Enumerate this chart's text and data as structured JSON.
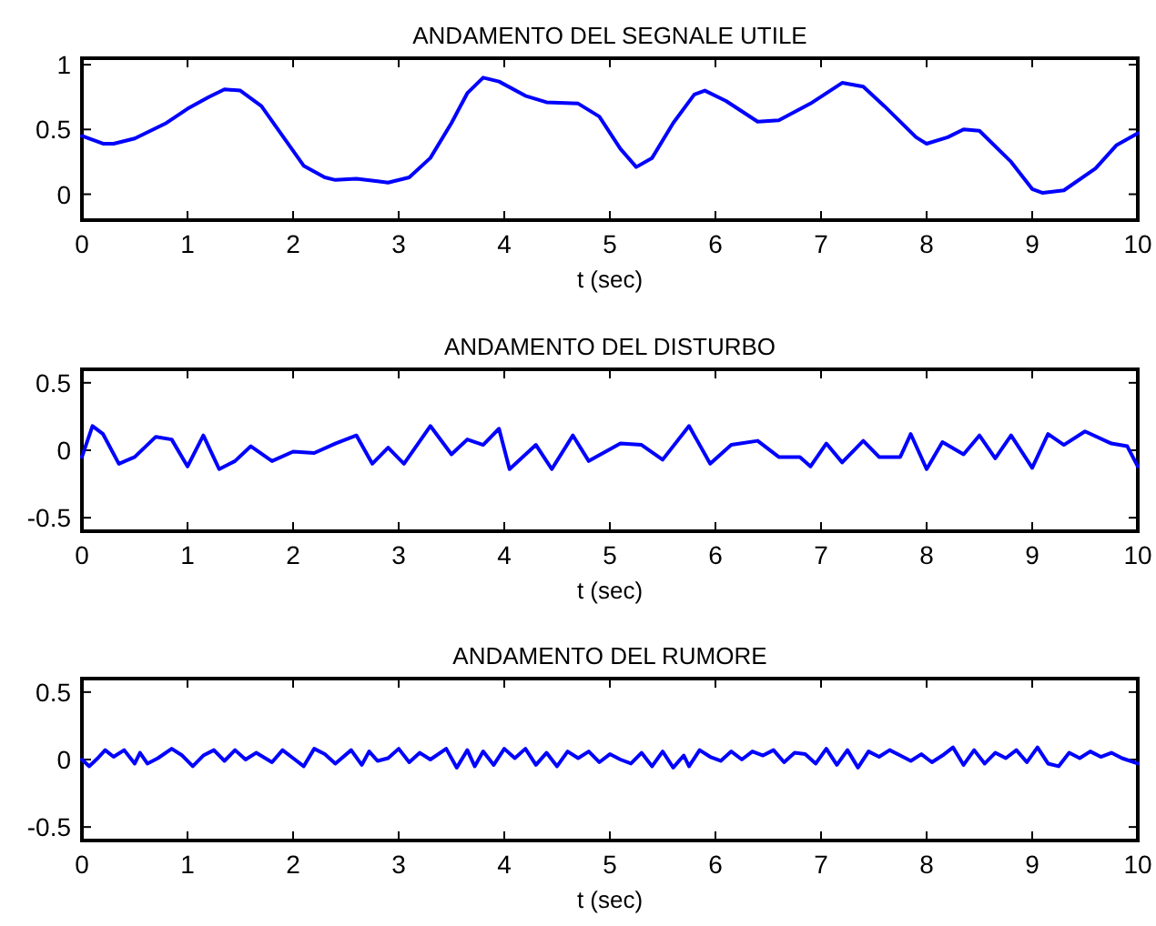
{
  "chart_data": [
    {
      "type": "line",
      "title": "ANDAMENTO DEL SEGNALE UTILE",
      "xlabel": "t (sec)",
      "xlim": [
        0,
        10
      ],
      "xticks": [
        0,
        1,
        2,
        3,
        4,
        5,
        6,
        7,
        8,
        9,
        10
      ],
      "ylim": [
        -0.2,
        1.05
      ],
      "yticks": [
        0,
        0.5,
        1
      ],
      "series": [
        {
          "color": "#0000ff",
          "x": [
            0,
            0.2,
            0.3,
            0.5,
            0.8,
            1.0,
            1.2,
            1.35,
            1.5,
            1.7,
            1.9,
            2.1,
            2.3,
            2.4,
            2.6,
            2.8,
            2.9,
            3.1,
            3.3,
            3.5,
            3.65,
            3.8,
            3.95,
            4.2,
            4.4,
            4.7,
            4.9,
            5.1,
            5.25,
            5.4,
            5.6,
            5.8,
            5.9,
            6.1,
            6.4,
            6.6,
            6.9,
            7.2,
            7.4,
            7.6,
            7.9,
            8.0,
            8.2,
            8.35,
            8.5,
            8.8,
            9.0,
            9.1,
            9.3,
            9.6,
            9.8,
            10
          ],
          "values": [
            0.45,
            0.39,
            0.39,
            0.43,
            0.55,
            0.66,
            0.75,
            0.81,
            0.8,
            0.68,
            0.45,
            0.22,
            0.13,
            0.11,
            0.12,
            0.1,
            0.09,
            0.13,
            0.28,
            0.55,
            0.78,
            0.9,
            0.87,
            0.76,
            0.71,
            0.7,
            0.6,
            0.35,
            0.21,
            0.28,
            0.55,
            0.77,
            0.8,
            0.72,
            0.56,
            0.57,
            0.7,
            0.86,
            0.83,
            0.68,
            0.44,
            0.39,
            0.44,
            0.5,
            0.49,
            0.25,
            0.04,
            0.01,
            0.03,
            0.2,
            0.38,
            0.47
          ]
        }
      ]
    },
    {
      "type": "line",
      "title": "ANDAMENTO DEL DISTURBO",
      "xlabel": "t (sec)",
      "xlim": [
        0,
        10
      ],
      "xticks": [
        0,
        1,
        2,
        3,
        4,
        5,
        6,
        7,
        8,
        9,
        10
      ],
      "ylim": [
        -0.6,
        0.6
      ],
      "yticks": [
        -0.5,
        0,
        0.5
      ],
      "series": [
        {
          "color": "#0000ff",
          "x": [
            0,
            0.1,
            0.2,
            0.35,
            0.5,
            0.7,
            0.85,
            1.0,
            1.15,
            1.3,
            1.45,
            1.6,
            1.8,
            2.0,
            2.2,
            2.4,
            2.6,
            2.75,
            2.9,
            3.05,
            3.3,
            3.5,
            3.65,
            3.8,
            3.95,
            4.05,
            4.3,
            4.45,
            4.65,
            4.8,
            5.1,
            5.3,
            5.5,
            5.75,
            5.95,
            6.15,
            6.4,
            6.6,
            6.8,
            6.9,
            7.05,
            7.2,
            7.4,
            7.55,
            7.75,
            7.85,
            8.0,
            8.15,
            8.35,
            8.5,
            8.65,
            8.8,
            9.0,
            9.15,
            9.3,
            9.5,
            9.75,
            9.9,
            10
          ],
          "values": [
            -0.05,
            0.18,
            0.12,
            -0.1,
            -0.05,
            0.1,
            0.08,
            -0.12,
            0.11,
            -0.14,
            -0.08,
            0.03,
            -0.08,
            -0.01,
            -0.02,
            0.05,
            0.11,
            -0.1,
            0.02,
            -0.1,
            0.18,
            -0.03,
            0.08,
            0.04,
            0.16,
            -0.14,
            0.04,
            -0.14,
            0.11,
            -0.08,
            0.05,
            0.04,
            -0.07,
            0.18,
            -0.1,
            0.04,
            0.07,
            -0.05,
            -0.05,
            -0.12,
            0.05,
            -0.09,
            0.07,
            -0.05,
            -0.05,
            0.12,
            -0.14,
            0.06,
            -0.03,
            0.11,
            -0.06,
            0.11,
            -0.13,
            0.12,
            0.04,
            0.14,
            0.05,
            0.03,
            -0.12
          ]
        }
      ]
    },
    {
      "type": "line",
      "title": "ANDAMENTO DEL RUMORE",
      "xlabel": "t (sec)",
      "xlim": [
        0,
        10
      ],
      "xticks": [
        0,
        1,
        2,
        3,
        4,
        5,
        6,
        7,
        8,
        9,
        10
      ],
      "ylim": [
        -0.6,
        0.6
      ],
      "yticks": [
        -0.5,
        0,
        0.5
      ],
      "series": [
        {
          "color": "#0000ff",
          "x": [
            0,
            0.07,
            0.15,
            0.22,
            0.3,
            0.4,
            0.5,
            0.55,
            0.62,
            0.72,
            0.85,
            0.95,
            1.05,
            1.15,
            1.25,
            1.35,
            1.45,
            1.55,
            1.65,
            1.8,
            1.9,
            2.0,
            2.1,
            2.2,
            2.3,
            2.4,
            2.55,
            2.65,
            2.72,
            2.8,
            2.9,
            3.0,
            3.1,
            3.2,
            3.3,
            3.45,
            3.55,
            3.65,
            3.72,
            3.8,
            3.9,
            4.0,
            4.1,
            4.2,
            4.3,
            4.4,
            4.5,
            4.6,
            4.7,
            4.8,
            4.9,
            5.0,
            5.1,
            5.2,
            5.3,
            5.4,
            5.5,
            5.6,
            5.7,
            5.75,
            5.85,
            5.95,
            6.05,
            6.15,
            6.25,
            6.35,
            6.45,
            6.55,
            6.65,
            6.75,
            6.85,
            6.95,
            7.05,
            7.15,
            7.25,
            7.35,
            7.45,
            7.55,
            7.65,
            7.75,
            7.85,
            7.95,
            8.05,
            8.15,
            8.25,
            8.35,
            8.45,
            8.55,
            8.65,
            8.75,
            8.85,
            8.95,
            9.05,
            9.15,
            9.25,
            9.35,
            9.45,
            9.55,
            9.65,
            9.75,
            9.85,
            10
          ],
          "values": [
            0,
            -0.05,
            0.01,
            0.07,
            0.02,
            0.07,
            -0.03,
            0.05,
            -0.03,
            0.01,
            0.08,
            0.03,
            -0.05,
            0.03,
            0.07,
            -0.01,
            0.07,
            0,
            0.05,
            -0.02,
            0.07,
            0.01,
            -0.05,
            0.08,
            0.04,
            -0.03,
            0.07,
            -0.04,
            0.06,
            -0.01,
            0.01,
            0.08,
            -0.02,
            0.05,
            0,
            0.08,
            -0.06,
            0.07,
            -0.05,
            0.06,
            -0.04,
            0.08,
            0.01,
            0.08,
            -0.04,
            0.05,
            -0.05,
            0.06,
            0.01,
            0.06,
            -0.02,
            0.04,
            0,
            -0.03,
            0.05,
            -0.05,
            0.06,
            -0.06,
            0.03,
            -0.05,
            0.07,
            0.02,
            -0.01,
            0.06,
            0,
            0.06,
            0.03,
            0.07,
            -0.02,
            0.05,
            0.04,
            -0.03,
            0.08,
            -0.04,
            0.07,
            -0.06,
            0.06,
            0.02,
            0.07,
            0.03,
            -0.01,
            0.04,
            -0.02,
            0.03,
            0.09,
            -0.04,
            0.07,
            -0.03,
            0.05,
            0.01,
            0.07,
            -0.02,
            0.09,
            -0.03,
            -0.05,
            0.05,
            0.01,
            0.06,
            0.02,
            0.05,
            0.01,
            -0.03
          ]
        }
      ]
    }
  ]
}
